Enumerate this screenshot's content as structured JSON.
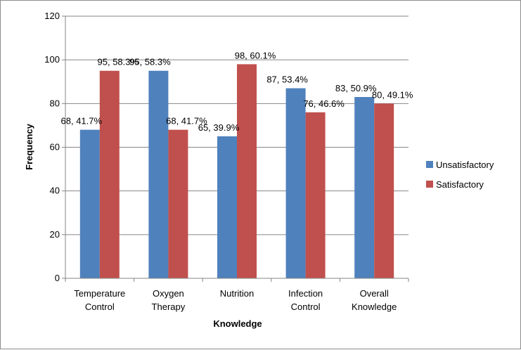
{
  "chart_data": {
    "type": "bar",
    "title": "",
    "xlabel": "Knowledge",
    "ylabel": "Frequency",
    "ylim": [
      0,
      120
    ],
    "yticks": [
      0,
      20,
      40,
      60,
      80,
      100,
      120
    ],
    "grid": true,
    "legend_position": "right",
    "categories": [
      [
        "Temperature",
        "Control"
      ],
      [
        "Oxygen",
        "Therapy"
      ],
      [
        "Nutrition"
      ],
      [
        "Infection",
        "Control"
      ],
      [
        "Overall",
        "Knowledge"
      ]
    ],
    "series": [
      {
        "name": "Unsatisfactory",
        "color": "#4f81bd",
        "values": [
          68,
          95,
          65,
          87,
          83
        ],
        "labels": [
          "68, 41.7%",
          "95, 58.3%",
          "65, 39.9%",
          "87, 53.4%",
          "83, 50.9%"
        ]
      },
      {
        "name": "Satisfactory",
        "color": "#c0504d",
        "values": [
          95,
          68,
          98,
          76,
          80
        ],
        "labels": [
          "95, 58.3%",
          "68, 41.7%",
          "98, 60.1%",
          "76, 46.6%",
          "80, 49.1%"
        ]
      }
    ]
  }
}
